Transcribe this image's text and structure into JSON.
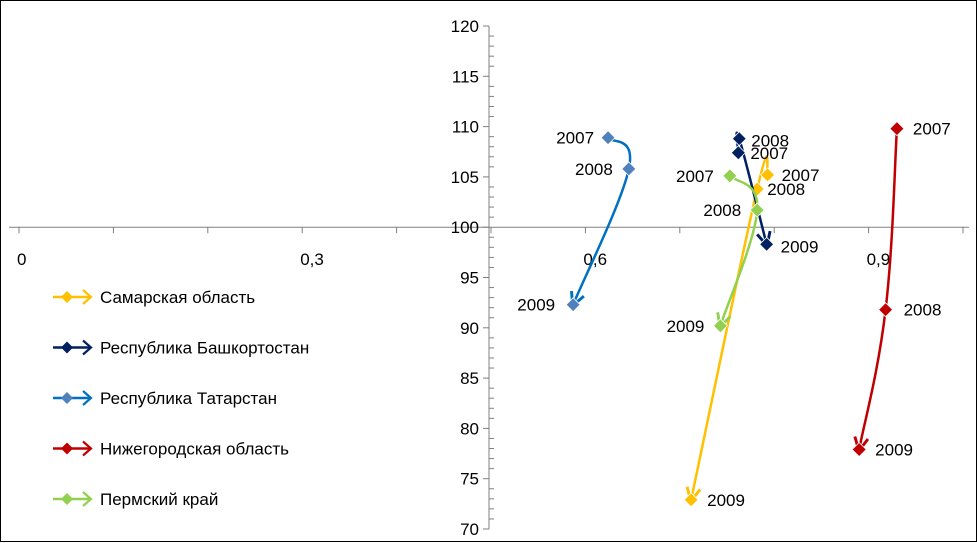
{
  "chart_data": {
    "type": "scatter",
    "title": "",
    "xlabel": "",
    "ylabel": "",
    "xlim": [
      0,
      1.0
    ],
    "ylim": [
      70,
      120
    ],
    "x_ticks": [
      {
        "value": 0,
        "label": "0"
      },
      {
        "value": 0.3,
        "label": "0,3"
      },
      {
        "value": 0.6,
        "label": "0,6"
      },
      {
        "value": 0.9,
        "label": "0,9"
      }
    ],
    "y_ticks": [
      {
        "value": 70,
        "label": "70"
      },
      {
        "value": 75,
        "label": "75"
      },
      {
        "value": 80,
        "label": "80"
      },
      {
        "value": 85,
        "label": "85"
      },
      {
        "value": 90,
        "label": "90"
      },
      {
        "value": 95,
        "label": "95"
      },
      {
        "value": 100,
        "label": "100"
      },
      {
        "value": 105,
        "label": "105"
      },
      {
        "value": 110,
        "label": "110"
      },
      {
        "value": 115,
        "label": "115"
      },
      {
        "value": 120,
        "label": "120"
      }
    ],
    "grid": false,
    "legend_position": "left",
    "series": [
      {
        "name": "Самарская область",
        "color": "#FFC000",
        "marker_fill": "#FFC000",
        "points": [
          {
            "x": 0.793,
            "y": 105.2,
            "label": "2007"
          },
          {
            "x": 0.782,
            "y": 103.8,
            "label": "2008"
          },
          {
            "x": 0.712,
            "y": 72.9,
            "label": "2009"
          }
        ]
      },
      {
        "name": "Республика Башкортостан",
        "color": "#002060",
        "marker_fill": "#002060",
        "points": [
          {
            "x": 0.762,
            "y": 107.4,
            "label": "2007"
          },
          {
            "x": 0.763,
            "y": 108.8,
            "label": "2008"
          },
          {
            "x": 0.792,
            "y": 98.3,
            "label": "2009"
          }
        ]
      },
      {
        "name": "Республика Татарстан",
        "color": "#0070C0",
        "marker_fill": "#4F81BD",
        "points": [
          {
            "x": 0.624,
            "y": 108.9,
            "label": "2007"
          },
          {
            "x": 0.646,
            "y": 105.8,
            "label": "2008"
          },
          {
            "x": 0.587,
            "y": 92.3,
            "label": "2009"
          }
        ]
      },
      {
        "name": "Нижегородская область",
        "color": "#C00000",
        "marker_fill": "#C00000",
        "points": [
          {
            "x": 0.93,
            "y": 109.8,
            "label": "2007"
          },
          {
            "x": 0.918,
            "y": 91.8,
            "label": "2008"
          },
          {
            "x": 0.89,
            "y": 77.9,
            "label": "2009"
          }
        ]
      },
      {
        "name": "Пермский край",
        "color": "#92D050",
        "marker_fill": "#92D050",
        "points": [
          {
            "x": 0.753,
            "y": 105.1,
            "label": "2007"
          },
          {
            "x": 0.782,
            "y": 101.7,
            "label": "2008"
          },
          {
            "x": 0.743,
            "y": 90.2,
            "label": "2009"
          }
        ]
      }
    ]
  }
}
